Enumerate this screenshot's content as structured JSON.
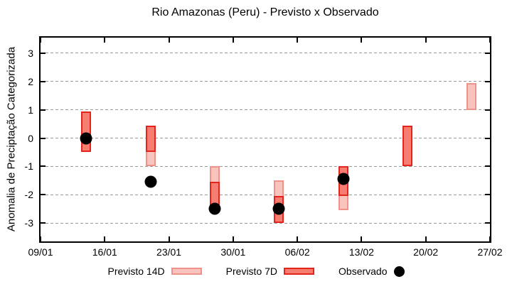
{
  "chart_data": {
    "type": "bar",
    "title": "Rio Amazonas (Peru) - Previsto x Observado",
    "xlabel": "",
    "ylabel": "Anomalia de Preciptação Categorizada",
    "ylim": [
      -3.65,
      3.55
    ],
    "yticks": [
      3,
      2,
      1,
      0,
      -1,
      -2,
      -3
    ],
    "grid": true,
    "legend_position": "bottom",
    "x_max_day": 49,
    "x_ticks": [
      {
        "label": "09/01",
        "day": 0
      },
      {
        "label": "16/01",
        "day": 7
      },
      {
        "label": "23/01",
        "day": 14
      },
      {
        "label": "30/01",
        "day": 21
      },
      {
        "label": "06/02",
        "day": 28
      },
      {
        "label": "13/02",
        "day": 35
      },
      {
        "label": "20/02",
        "day": 42
      },
      {
        "label": "27/02",
        "day": 49
      }
    ],
    "series": [
      {
        "name": "Previsto 14D",
        "style": "range",
        "fill": "#f8c4bd",
        "border": "#f0918a",
        "points": [
          {
            "date": "14/01",
            "day": 5,
            "low": -0.5,
            "high": 0.95
          },
          {
            "date": "21/01",
            "day": 12,
            "low": -1.0,
            "high": 0.45
          },
          {
            "date": "28/01",
            "day": 19,
            "low": -2.05,
            "high": -1.0
          },
          {
            "date": "04/02",
            "day": 26,
            "low": -3.0,
            "high": -1.5
          },
          {
            "date": "11/02",
            "day": 33,
            "low": -2.55,
            "high": -1.0
          },
          {
            "date": "18/02",
            "day": 40,
            "low": -1.0,
            "high": 0.45
          },
          {
            "date": "25/02",
            "day": 47,
            "low": 1.0,
            "high": 1.95
          }
        ]
      },
      {
        "name": "Previsto 7D",
        "style": "range",
        "fill": "#f87d71",
        "border": "#e3251d",
        "points": [
          {
            "date": "14/01",
            "day": 5,
            "low": -0.5,
            "high": 0.95
          },
          {
            "date": "21/01",
            "day": 12,
            "low": -0.5,
            "high": 0.45
          },
          {
            "date": "28/01",
            "day": 19,
            "low": -2.45,
            "high": -1.55
          },
          {
            "date": "04/02",
            "day": 26,
            "low": -3.0,
            "high": -2.05
          },
          {
            "date": "11/02",
            "day": 33,
            "low": -2.05,
            "high": -1.0
          },
          {
            "date": "18/02",
            "day": 40,
            "low": -1.0,
            "high": 0.45
          },
          {
            "date": "25/02",
            "day": 47,
            "low": null,
            "high": null
          }
        ]
      },
      {
        "name": "Observado",
        "style": "scatter",
        "fill": "#000000",
        "points": [
          {
            "date": "14/01",
            "day": 5,
            "value": 0.0
          },
          {
            "date": "21/01",
            "day": 12,
            "value": -1.55
          },
          {
            "date": "28/01",
            "day": 19,
            "value": -2.5
          },
          {
            "date": "04/02",
            "day": 26,
            "value": -2.5
          },
          {
            "date": "11/02",
            "day": 33,
            "value": -1.45
          }
        ]
      }
    ],
    "colors": {
      "axis": "#000000",
      "grid": "#9a9a9a",
      "background": "#ffffff"
    }
  }
}
